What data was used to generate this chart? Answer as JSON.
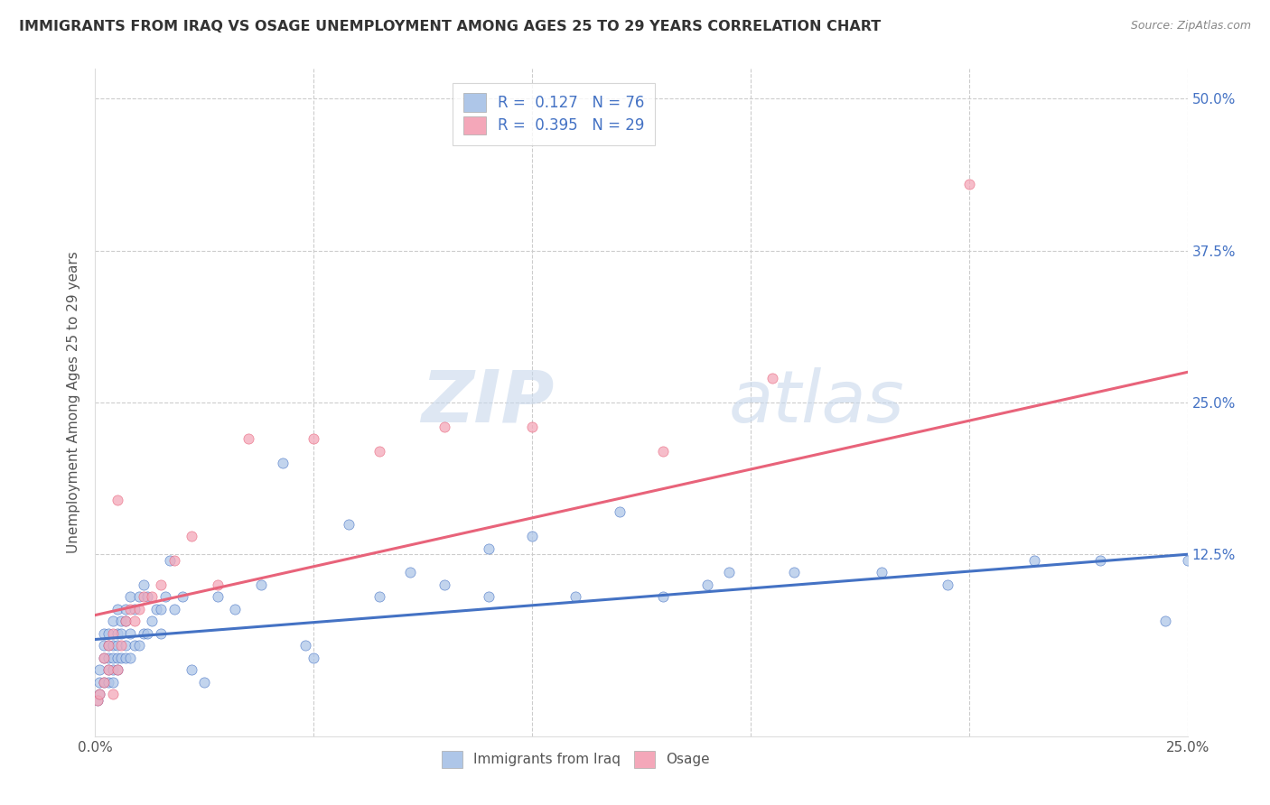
{
  "title": "IMMIGRANTS FROM IRAQ VS OSAGE UNEMPLOYMENT AMONG AGES 25 TO 29 YEARS CORRELATION CHART",
  "source": "Source: ZipAtlas.com",
  "ylabel": "Unemployment Among Ages 25 to 29 years",
  "xlim": [
    0.0,
    0.25
  ],
  "ylim": [
    -0.025,
    0.525
  ],
  "ytick_labels": [
    "12.5%",
    "25.0%",
    "37.5%",
    "50.0%"
  ],
  "ytick_positions": [
    0.125,
    0.25,
    0.375,
    0.5
  ],
  "legend_R1": "R =  0.127",
  "legend_N1": "N = 76",
  "legend_R2": "R =  0.395",
  "legend_N2": "N = 29",
  "iraq_color": "#aec6e8",
  "osage_color": "#f4a7b9",
  "iraq_line_color": "#4472c4",
  "osage_line_color": "#e8637a",
  "legend_text_color": "#4472c4",
  "background_color": "#ffffff",
  "iraq_scatter_x": [
    0.0005,
    0.001,
    0.001,
    0.001,
    0.002,
    0.002,
    0.002,
    0.002,
    0.003,
    0.003,
    0.003,
    0.003,
    0.003,
    0.004,
    0.004,
    0.004,
    0.004,
    0.004,
    0.005,
    0.005,
    0.005,
    0.005,
    0.005,
    0.006,
    0.006,
    0.006,
    0.007,
    0.007,
    0.007,
    0.007,
    0.008,
    0.008,
    0.008,
    0.009,
    0.009,
    0.01,
    0.01,
    0.011,
    0.011,
    0.012,
    0.012,
    0.013,
    0.014,
    0.015,
    0.015,
    0.016,
    0.017,
    0.018,
    0.02,
    0.022,
    0.025,
    0.028,
    0.032,
    0.038,
    0.043,
    0.05,
    0.058,
    0.065,
    0.072,
    0.08,
    0.09,
    0.1,
    0.11,
    0.12,
    0.13,
    0.145,
    0.16,
    0.18,
    0.195,
    0.215,
    0.23,
    0.245,
    0.25,
    0.048,
    0.09,
    0.14
  ],
  "iraq_scatter_y": [
    0.005,
    0.01,
    0.02,
    0.03,
    0.02,
    0.04,
    0.05,
    0.06,
    0.02,
    0.03,
    0.04,
    0.05,
    0.06,
    0.02,
    0.03,
    0.04,
    0.05,
    0.07,
    0.03,
    0.04,
    0.05,
    0.06,
    0.08,
    0.04,
    0.06,
    0.07,
    0.04,
    0.05,
    0.07,
    0.08,
    0.04,
    0.06,
    0.09,
    0.05,
    0.08,
    0.05,
    0.09,
    0.06,
    0.1,
    0.06,
    0.09,
    0.07,
    0.08,
    0.06,
    0.08,
    0.09,
    0.12,
    0.08,
    0.09,
    0.03,
    0.02,
    0.09,
    0.08,
    0.1,
    0.2,
    0.04,
    0.15,
    0.09,
    0.11,
    0.1,
    0.09,
    0.14,
    0.09,
    0.16,
    0.09,
    0.11,
    0.11,
    0.11,
    0.1,
    0.12,
    0.12,
    0.07,
    0.12,
    0.05,
    0.13,
    0.1
  ],
  "osage_scatter_x": [
    0.0005,
    0.001,
    0.002,
    0.002,
    0.003,
    0.003,
    0.004,
    0.004,
    0.005,
    0.005,
    0.006,
    0.007,
    0.008,
    0.009,
    0.01,
    0.011,
    0.013,
    0.015,
    0.018,
    0.022,
    0.028,
    0.035,
    0.05,
    0.065,
    0.08,
    0.1,
    0.13,
    0.155,
    0.2
  ],
  "osage_scatter_y": [
    0.005,
    0.01,
    0.02,
    0.04,
    0.03,
    0.05,
    0.01,
    0.06,
    0.03,
    0.17,
    0.05,
    0.07,
    0.08,
    0.07,
    0.08,
    0.09,
    0.09,
    0.1,
    0.12,
    0.14,
    0.1,
    0.22,
    0.22,
    0.21,
    0.23,
    0.23,
    0.21,
    0.27,
    0.43
  ],
  "iraq_trend_x": [
    0.0,
    0.25
  ],
  "iraq_trend_y": [
    0.055,
    0.125
  ],
  "osage_trend_x": [
    0.0,
    0.25
  ],
  "osage_trend_y": [
    0.075,
    0.275
  ],
  "watermark_zip": "ZIP",
  "watermark_atlas": "atlas",
  "grid_color": "#cccccc",
  "grid_linestyle": "--",
  "title_fontsize": 11.5,
  "source_fontsize": 9,
  "label_fontsize": 11,
  "tick_fontsize": 11
}
